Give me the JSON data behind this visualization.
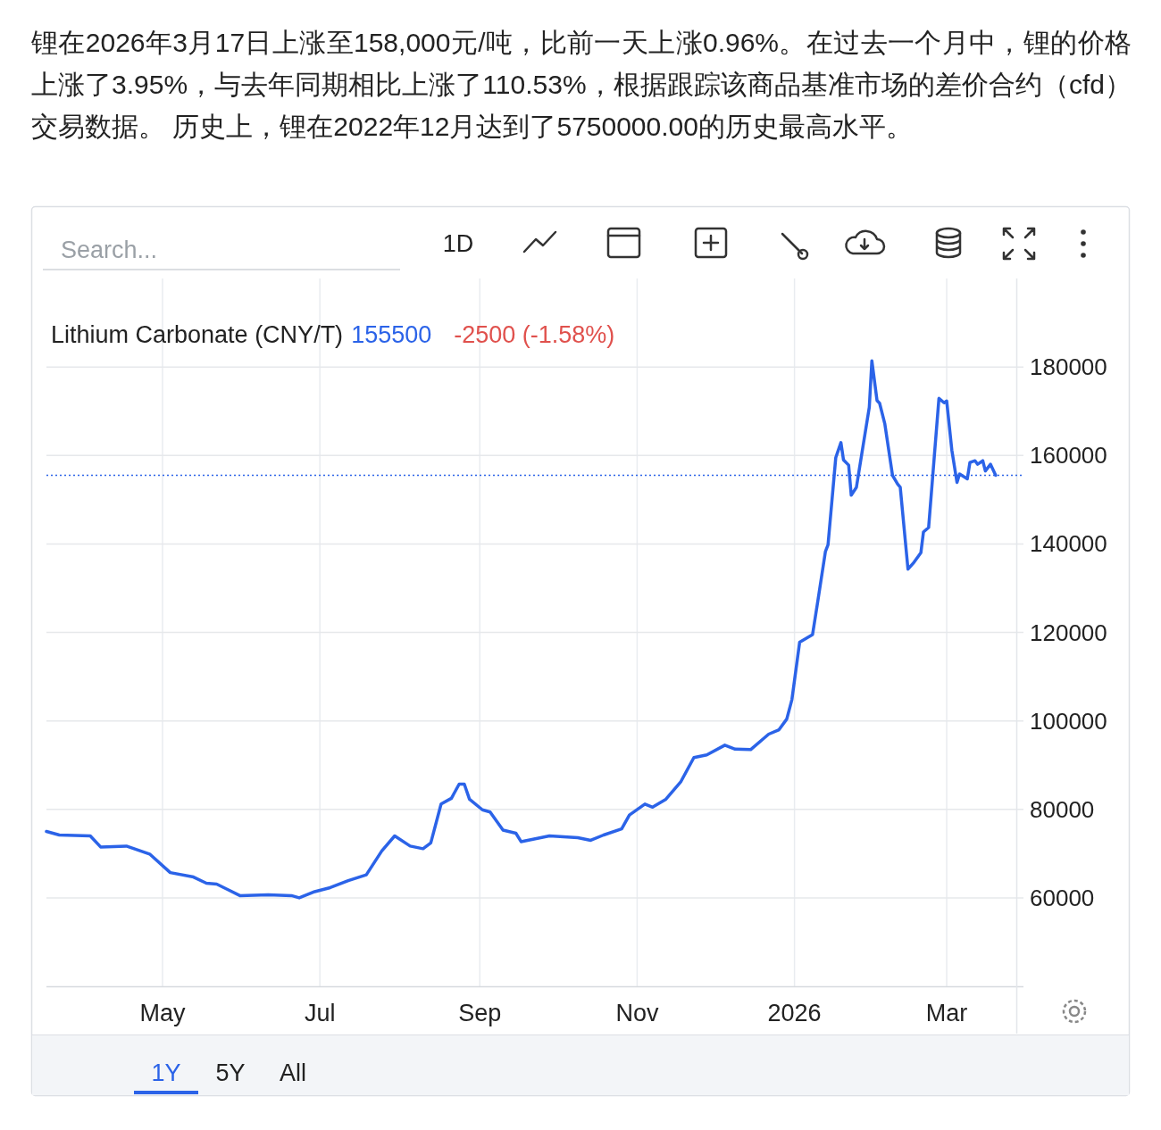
{
  "chart_data": {
    "type": "line",
    "title": "锂在2026年3月17日上涨至158,000元/吨，比前一天上涨0.96%。在过去一个月中，锂的价格上涨了3.95%，与去年同期相比上涨了110.53%，根据跟踪该商品基准市场的差价合约（cfd）交易数据。 历史上，锂在2022年12月达到了5750000.00的历史最高水平。",
    "subtitle": "Lithium Carbonate (CNY/T)",
    "annotations": [
      "155500",
      "-2500 (-1.58%)",
      "Search...",
      "1D",
      "1Y",
      "5Y",
      "All"
    ],
    "x": [
      "2025-03-17",
      "2025-03-22",
      "2025-04-03",
      "2025-04-07",
      "2025-04-17",
      "2025-04-26",
      "2025-05-04",
      "2025-05-13",
      "2025-05-18",
      "2025-05-22",
      "2025-05-31",
      "2025-06-11",
      "2025-06-20",
      "2025-06-23",
      "2025-06-29",
      "2025-07-05",
      "2025-07-12",
      "2025-07-19",
      "2025-07-25",
      "2025-07-30",
      "2025-08-05",
      "2025-08-10",
      "2025-08-13",
      "2025-08-17",
      "2025-08-21",
      "2025-08-24",
      "2025-08-26",
      "2025-08-28",
      "2025-09-02",
      "2025-09-05",
      "2025-09-10",
      "2025-09-15",
      "2025-09-17",
      "2025-09-28",
      "2025-10-09",
      "2025-10-14",
      "2025-10-19",
      "2025-10-26",
      "2025-10-29",
      "2025-11-04",
      "2025-11-07",
      "2025-11-12",
      "2025-11-18",
      "2025-11-23",
      "2025-11-28",
      "2025-12-05",
      "2025-12-09",
      "2025-12-15",
      "2025-12-22",
      "2025-12-26",
      "2025-12-29",
      "2025-12-31",
      "2026-01-03",
      "2026-01-08",
      "2026-01-10",
      "2026-01-13",
      "2026-01-14",
      "2026-01-17",
      "2026-01-19",
      "2026-01-20",
      "2026-01-22",
      "2026-01-23",
      "2026-01-25",
      "2026-01-30",
      "2026-01-31",
      "2026-02-02",
      "2026-02-03",
      "2026-02-05",
      "2026-02-08",
      "2026-02-10",
      "2026-02-11",
      "2026-02-14",
      "2026-02-16",
      "2026-02-19",
      "2026-02-20",
      "2026-02-22",
      "2026-02-26",
      "2026-02-28",
      "2026-03-01",
      "2026-03-03",
      "2026-03-05",
      "2026-03-06",
      "2026-03-09",
      "2026-03-10",
      "2026-03-12",
      "2026-03-13",
      "2026-03-15",
      "2026-03-16",
      "2026-03-18",
      "2026-03-20"
    ],
    "series": [
      {
        "color": "#2b63e8",
        "values": [
          75000,
          74200,
          74000,
          71500,
          71700,
          69900,
          65700,
          64700,
          63300,
          63100,
          60500,
          60700,
          60500,
          60000,
          61400,
          62300,
          63900,
          65200,
          70600,
          74000,
          71700,
          71100,
          72400,
          81200,
          82500,
          85700,
          85700,
          82300,
          79900,
          79400,
          75300,
          74600,
          72700,
          74000,
          73600,
          73000,
          74200,
          75600,
          78700,
          81200,
          80500,
          82200,
          86300,
          91700,
          92300,
          94500,
          93600,
          93500,
          97000,
          98000,
          100400,
          104800,
          117800,
          119500,
          126900,
          138300,
          139800,
          159500,
          162900,
          159000,
          157800,
          151000,
          152800,
          170900,
          181400,
          172400,
          171800,
          167200,
          155500,
          153500,
          152800,
          134300,
          135600,
          138000,
          142700,
          143700,
          172900,
          171900,
          172300,
          161200,
          153900,
          155800,
          154700,
          158400,
          158800,
          158000,
          158800,
          156500,
          158000,
          155500
        ]
      }
    ],
    "xlim": [
      "2025-03-17",
      "2026-03-28"
    ],
    "xticks": [
      {
        "value": "2025-05-01",
        "label": "May"
      },
      {
        "value": "2025-07-01",
        "label": "Jul"
      },
      {
        "value": "2025-09-01",
        "label": "Sep"
      },
      {
        "value": "2025-11-01",
        "label": "Nov"
      },
      {
        "value": "2026-01-01",
        "label": "2026"
      },
      {
        "value": "2026-03-01",
        "label": "Mar"
      }
    ],
    "ylim": [
      40000,
      200000
    ],
    "yticks": [
      60000,
      80000,
      100000,
      120000,
      140000,
      160000,
      180000
    ],
    "ref_lines": [
      {
        "axis": "y",
        "value": 155500,
        "color": "#2b63e8",
        "line_style": "dotted"
      }
    ],
    "grid": true,
    "marker": "none",
    "line_style": "solid"
  }
}
